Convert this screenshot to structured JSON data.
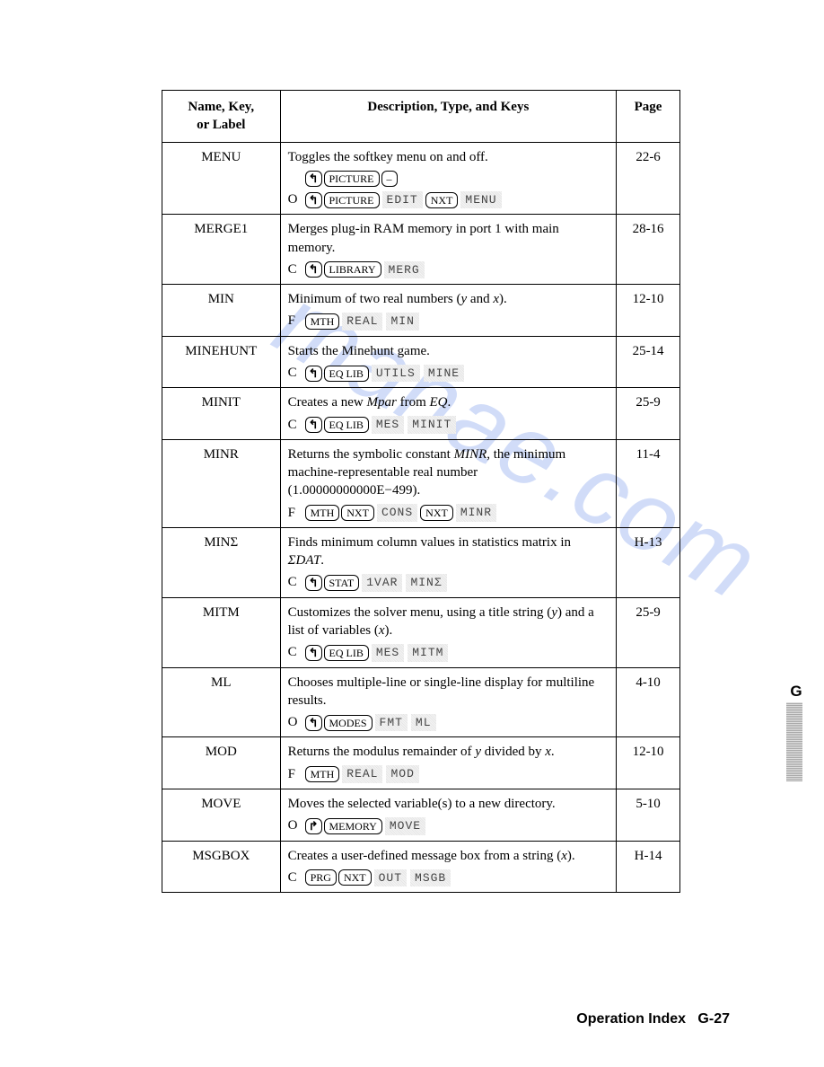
{
  "watermark_parts": [
    "man",
    "a",
    "e.com"
  ],
  "header": {
    "col_name_line1": "Name, Key,",
    "col_name_line2": "or Label",
    "col_desc": "Description, Type, and Keys",
    "col_page": "Page"
  },
  "rows": [
    {
      "name": "MENU",
      "page": "22-6",
      "desc": "Toggles the softkey menu on and off.",
      "keylines": [
        {
          "prefix": "",
          "parts": [
            {
              "t": "shift",
              "v": "↰"
            },
            {
              "t": "hard",
              "v": "PICTURE"
            },
            {
              "t": "hard",
              "v": "–"
            }
          ]
        },
        {
          "prefix": "O",
          "parts": [
            {
              "t": "shift",
              "v": "↰"
            },
            {
              "t": "hard",
              "v": "PICTURE"
            },
            {
              "t": "soft",
              "v": "EDIT"
            },
            {
              "t": "hard",
              "v": "NXT"
            },
            {
              "t": "soft",
              "v": "MENU"
            }
          ]
        }
      ]
    },
    {
      "name": "MERGE1",
      "page": "28-16",
      "desc": "Merges plug-in RAM memory in port 1 with main memory.",
      "keylines": [
        {
          "prefix": "C",
          "parts": [
            {
              "t": "shift",
              "v": "↰"
            },
            {
              "t": "hard",
              "v": "LIBRARY"
            },
            {
              "t": "soft",
              "v": "MERG"
            }
          ]
        }
      ]
    },
    {
      "name": "MIN",
      "page": "12-10",
      "desc_html": "Minimum of two real numbers (<span class='italic'>y</span> and <span class='italic'>x</span>).",
      "keylines": [
        {
          "prefix": "F",
          "parts": [
            {
              "t": "hard",
              "v": "MTH"
            },
            {
              "t": "soft",
              "v": "REAL"
            },
            {
              "t": "soft",
              "v": "MIN"
            }
          ]
        }
      ]
    },
    {
      "name": "MINEHUNT",
      "page": "25-14",
      "desc": "Starts the Minehunt game.",
      "keylines": [
        {
          "prefix": "C",
          "parts": [
            {
              "t": "shift",
              "v": "↰"
            },
            {
              "t": "hard",
              "v": "EQ LIB"
            },
            {
              "t": "soft",
              "v": "UTILS"
            },
            {
              "t": "soft",
              "v": "MINE"
            }
          ]
        }
      ]
    },
    {
      "name": "MINIT",
      "page": "25-9",
      "desc_html": "Creates a new <span class='italic'>Mpar</span> from <span class='italic'>EQ</span>.",
      "keylines": [
        {
          "prefix": "C",
          "parts": [
            {
              "t": "shift",
              "v": "↰"
            },
            {
              "t": "hard",
              "v": "EQ LIB"
            },
            {
              "t": "soft",
              "v": "MES"
            },
            {
              "t": "soft",
              "v": "MINIT"
            }
          ]
        }
      ]
    },
    {
      "name": "MINR",
      "page": "11-4",
      "desc_html": "Returns the symbolic constant <span class='italic'>MINR</span>, the minimum machine-representable real number (1.00000000000E−499).",
      "keylines": [
        {
          "prefix": "F",
          "parts": [
            {
              "t": "hard",
              "v": "MTH"
            },
            {
              "t": "hard",
              "v": "NXT"
            },
            {
              "t": "soft",
              "v": "CONS"
            },
            {
              "t": "hard",
              "v": "NXT"
            },
            {
              "t": "soft",
              "v": "MINR"
            }
          ]
        }
      ]
    },
    {
      "name": "MINΣ",
      "page": "H-13",
      "desc_html": "Finds minimum column values in statistics matrix in <span class='italic'>ΣDAT</span>.",
      "keylines": [
        {
          "prefix": "C",
          "parts": [
            {
              "t": "shift",
              "v": "↰"
            },
            {
              "t": "hard",
              "v": "STAT"
            },
            {
              "t": "soft",
              "v": "1VAR"
            },
            {
              "t": "soft",
              "v": "MINΣ"
            }
          ]
        }
      ]
    },
    {
      "name": "MITM",
      "page": "25-9",
      "desc_html": "Customizes the solver menu, using a title string (<span class='italic'>y</span>) and a list of variables (<span class='italic'>x</span>).",
      "keylines": [
        {
          "prefix": "C",
          "parts": [
            {
              "t": "shift",
              "v": "↰"
            },
            {
              "t": "hard",
              "v": "EQ LIB"
            },
            {
              "t": "soft",
              "v": "MES"
            },
            {
              "t": "soft",
              "v": "MITM"
            }
          ]
        }
      ]
    },
    {
      "name": "ML",
      "page": "4-10",
      "desc": "Chooses multiple-line or single-line display for multiline results.",
      "keylines": [
        {
          "prefix": "O",
          "parts": [
            {
              "t": "shift",
              "v": "↰"
            },
            {
              "t": "hard",
              "v": "MODES"
            },
            {
              "t": "soft",
              "v": "FMT"
            },
            {
              "t": "soft",
              "v": "ML"
            }
          ]
        }
      ]
    },
    {
      "name": "MOD",
      "page": "12-10",
      "desc_html": "Returns the modulus remainder of <span class='italic'>y</span> divided by <span class='italic'>x</span>.",
      "keylines": [
        {
          "prefix": "F",
          "parts": [
            {
              "t": "hard",
              "v": "MTH"
            },
            {
              "t": "soft",
              "v": "REAL"
            },
            {
              "t": "soft",
              "v": "MOD"
            }
          ]
        }
      ]
    },
    {
      "name": "MOVE",
      "page": "5-10",
      "desc": "Moves the selected variable(s) to a new directory.",
      "keylines": [
        {
          "prefix": "O",
          "parts": [
            {
              "t": "shift",
              "v": "↱"
            },
            {
              "t": "hard",
              "v": "MEMORY"
            },
            {
              "t": "soft",
              "v": "MOVE"
            }
          ]
        }
      ]
    },
    {
      "name": "MSGBOX",
      "page": "H-14",
      "desc_html": "Creates a user-defined message box from a string (<span class='italic'>x</span>).",
      "keylines": [
        {
          "prefix": "C",
          "parts": [
            {
              "t": "hard",
              "v": "PRG"
            },
            {
              "t": "hard",
              "v": "NXT"
            },
            {
              "t": "soft",
              "v": "OUT"
            },
            {
              "t": "soft",
              "v": "MSGB"
            }
          ]
        }
      ]
    }
  ],
  "side_tab_letter": "G",
  "footer_label": "Operation Index",
  "footer_page": "G-27"
}
